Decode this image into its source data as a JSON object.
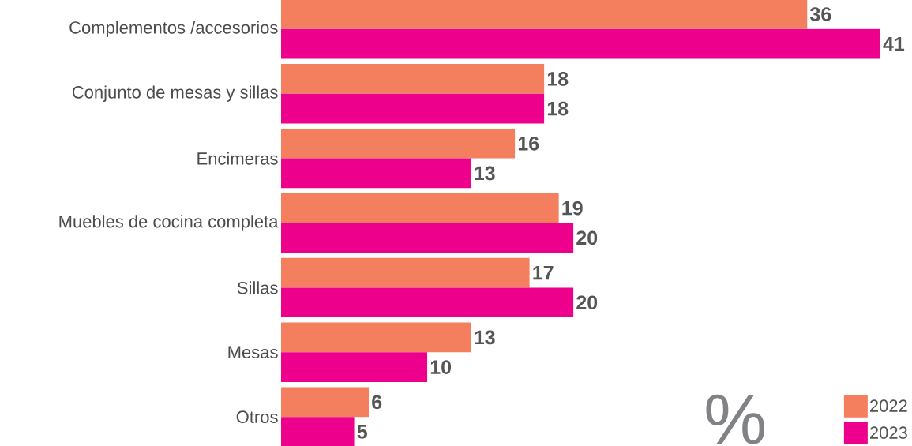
{
  "chart_data": {
    "type": "bar",
    "orientation": "horizontal",
    "categories": [
      "Complementos /accesorios",
      "Conjunto de mesas y sillas",
      "Encimeras",
      "Muebles de cocina completa",
      "Sillas",
      "Mesas",
      "Otros"
    ],
    "series": [
      {
        "name": "2022",
        "color": "#f47f5e",
        "values": [
          36,
          18,
          16,
          19,
          17,
          13,
          6
        ]
      },
      {
        "name": "2023",
        "color": "#ec008c",
        "values": [
          41,
          18,
          13,
          20,
          20,
          10,
          5
        ]
      }
    ],
    "data_labels": true,
    "legend": "bottom right",
    "annotations": [
      "%"
    ]
  }
}
